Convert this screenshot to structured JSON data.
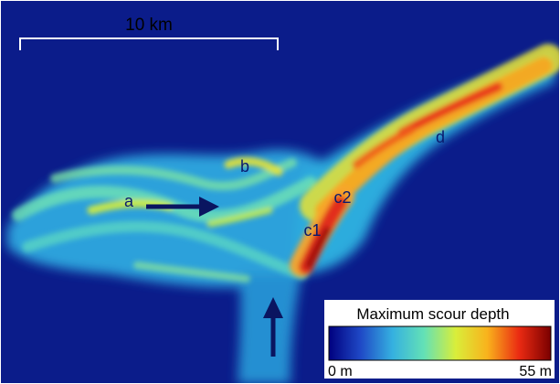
{
  "scale_bar": {
    "label": "10 km"
  },
  "labels": [
    "a",
    "b",
    "c1",
    "c2",
    "d"
  ],
  "legend": {
    "title": "Maximum scour depth",
    "min_label": "0 m",
    "max_label": "55 m",
    "colormap": [
      "#00007f",
      "#1f49c6",
      "#35b0e0",
      "#63e1b6",
      "#d9ee3a",
      "#f9b21c",
      "#ea2a12",
      "#7a0000"
    ]
  },
  "colors": {
    "background": "#0b1c8a",
    "frame": "#ffffff",
    "text": "#000000",
    "label_text": "#0a1a6e",
    "arrow": "#0a1560"
  }
}
